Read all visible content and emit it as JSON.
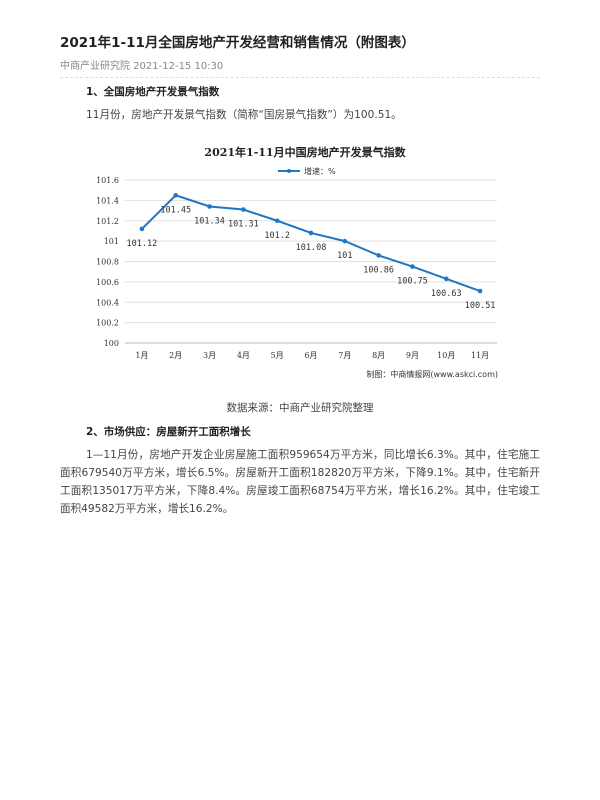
{
  "article": {
    "title": "2021年1-11月全国房地产开发经营和销售情况（附图表）",
    "meta": "中商产业研究院 2021-12-15 10:30",
    "section1_heading": "1、全国房地产开发景气指数",
    "section1_text": "11月份，房地产开发景气指数（简称“国房景气指数”）为100.51。",
    "chart_source": "数据来源：中商产业研究院整理",
    "section2_heading": "2、市场供应：房屋新开工面积增长",
    "section2_text": "1—11月份，房地产开发企业房屋施工面积959654万平方米，同比增长6.3%。其中，住宅施工面积679540万平方米，增长6.5%。房屋新开工面积182820万平方米，下降9.1%。其中，住宅新开工面积135017万平方米，下降8.4%。房屋竣工面积68754万平方米，增长16.2%。其中，住宅竣工面积49582万平方米，增长16.2%。"
  },
  "chart_data": {
    "type": "line",
    "title": "2021年1-11月中国房地产开发景气指数",
    "categories": [
      "1月",
      "2月",
      "3月",
      "4月",
      "5月",
      "6月",
      "7月",
      "8月",
      "9月",
      "10月",
      "11月"
    ],
    "series": [
      {
        "name": "增速：%",
        "values": [
          101.12,
          101.45,
          101.34,
          101.31,
          101.2,
          101.08,
          101,
          100.86,
          100.75,
          100.63,
          100.51
        ],
        "labels": [
          "101.12",
          "101.45",
          "101.34",
          "101.31",
          "101.2",
          "101.08",
          "101",
          "100.86",
          "100.75",
          "100.63",
          "100.51"
        ]
      }
    ],
    "yticks": [
      "100",
      "100.2",
      "100.4",
      "100.6",
      "100.8",
      "101",
      "101.2",
      "101.4",
      "101.6"
    ],
    "ylim": [
      100,
      101.6
    ],
    "grid": true,
    "legend": "top",
    "line_color": "#1f77c4",
    "credit": "制图：中商情报网(www.askci.com)",
    "watermark": "中商产业研究院"
  }
}
